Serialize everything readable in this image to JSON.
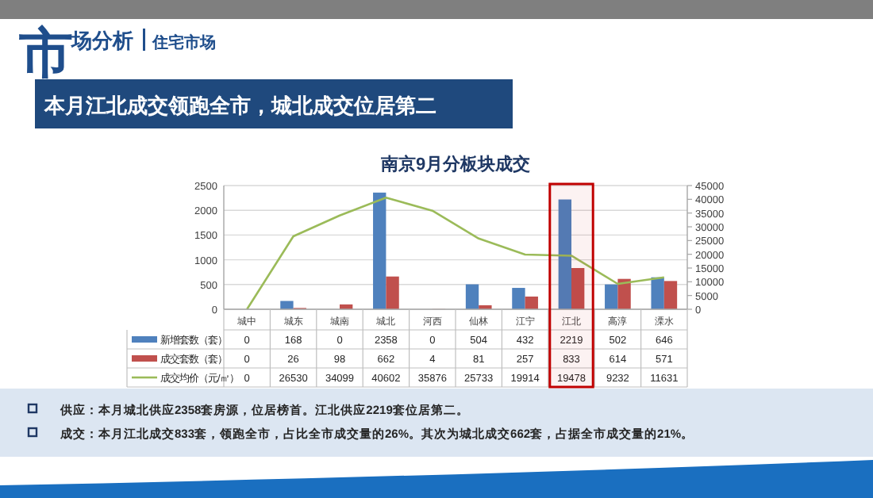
{
  "chart_data": {
    "type": "bar",
    "title": "南京9月分板块成交",
    "categories": [
      "城中",
      "城东",
      "城南",
      "城北",
      "河西",
      "仙林",
      "江宁",
      "江北",
      "高淳",
      "溧水"
    ],
    "series": [
      {
        "name": "新增套数（套）",
        "color": "#4f81bd",
        "values": [
          0,
          168,
          0,
          2358,
          0,
          504,
          432,
          2219,
          502,
          646
        ]
      },
      {
        "name": "成交套数（套）",
        "color": "#c0504d",
        "values": [
          0,
          26,
          98,
          662,
          4,
          81,
          257,
          833,
          614,
          571
        ]
      },
      {
        "name": "成交均价（元/㎡）",
        "color": "#9bbb59",
        "type": "line",
        "axis": "y2",
        "values": [
          0,
          26530,
          34099,
          40602,
          35876,
          25733,
          19914,
          19478,
          9232,
          11631
        ]
      }
    ],
    "ylim": [
      0,
      2500
    ],
    "yticks": [
      0,
      500,
      1000,
      1500,
      2000,
      2500
    ],
    "y2lim": [
      0,
      45000
    ],
    "y2ticks": [
      0,
      5000,
      10000,
      15000,
      20000,
      25000,
      30000,
      35000,
      40000,
      45000
    ],
    "grid": "y",
    "legend": "bottom",
    "data_labels": true,
    "bands": [
      {
        "axis": "x",
        "from": "江北",
        "to": "江北",
        "color": "#c00000"
      }
    ],
    "annotations": [
      "市场分析",
      "住宅市场",
      "本月江北成交领跑全市，城北成交位居第二",
      "供应：本月城北供应2358套房源，位居榜首。江北供应2219套位居第二。",
      "成交：本月江北成交833套，领跑全市，占比全市成交量的26%。其次为城北成交662套，占据全市成交量的21%。"
    ]
  }
}
